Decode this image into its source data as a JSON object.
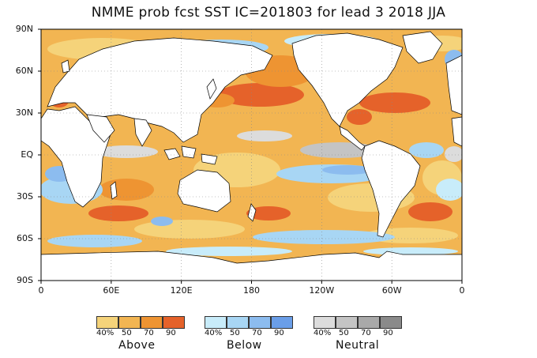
{
  "title": "NMME prob fcst SST IC=201803 for lead 3 2018 JJA",
  "lat_labels": [
    "90N",
    "60N",
    "30N",
    "EQ",
    "30S",
    "60S",
    "90S"
  ],
  "lon_labels": [
    "0",
    "60E",
    "120E",
    "180",
    "120W",
    "60W",
    "0"
  ],
  "legends": [
    {
      "name": "Above",
      "ticks": [
        "40%",
        "50",
        "70",
        "90"
      ],
      "colors": [
        "#f5d37a",
        "#f2b552",
        "#ee9432",
        "#e5622a"
      ]
    },
    {
      "name": "Below",
      "ticks": [
        "40%",
        "50",
        "70",
        "90"
      ],
      "colors": [
        "#c8ecfa",
        "#a8d6f4",
        "#8cbcef",
        "#6a9ee8"
      ]
    },
    {
      "name": "Neutral",
      "ticks": [
        "40%",
        "50",
        "70",
        "90"
      ],
      "colors": [
        "#dcdcdc",
        "#c4c4c4",
        "#a9a9a9",
        "#8a8a8a"
      ]
    }
  ],
  "colors": {
    "land": "#ffffff",
    "ocean_base": "#f2b552"
  }
}
